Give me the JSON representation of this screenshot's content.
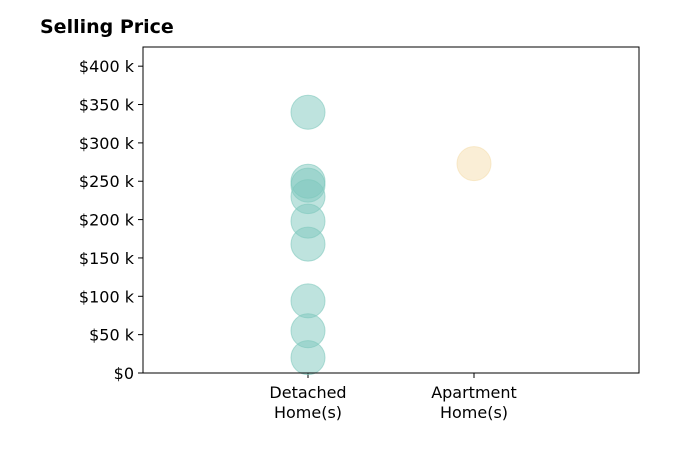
{
  "chart_data": {
    "type": "scatter",
    "title": "Selling Price",
    "xlabel": "",
    "ylabel": "",
    "categories": [
      "Detached\nHome(s)",
      "Apartment\nHome(s)"
    ],
    "ylim": [
      0,
      425
    ],
    "y_ticks": [
      0,
      50,
      100,
      150,
      200,
      250,
      300,
      350,
      400
    ],
    "y_tick_labels": [
      "$0",
      "$50 k",
      "$100 k",
      "$150 k",
      "$200 k",
      "$250 k",
      "$300 k",
      "$350 k",
      "$400 k"
    ],
    "grid": false,
    "series": [
      {
        "category": "Detached\nHome(s)",
        "color": "#7ec8bd",
        "values": [
          340,
          250,
          245,
          230,
          198,
          168,
          94,
          55,
          20
        ]
      },
      {
        "category": "Apartment\nHome(s)",
        "color": "#f5deae",
        "values": [
          273
        ]
      }
    ]
  }
}
